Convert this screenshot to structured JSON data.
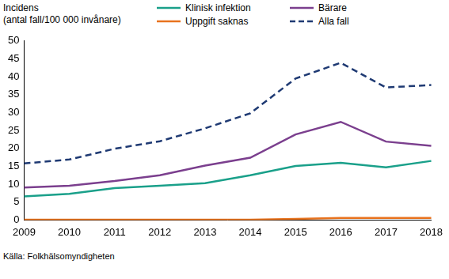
{
  "chart_data": {
    "type": "line",
    "ylabel": "Incidens\n(antal fall/100 000 invånare)",
    "annotations": [
      "Källa: Folkhälsomyndigheten"
    ],
    "categories": [
      "2009",
      "2010",
      "2011",
      "2012",
      "2013",
      "2014",
      "2015",
      "2016",
      "2017",
      "2018"
    ],
    "series": [
      {
        "name": "Klinisk infektion",
        "color": "#1aa08a",
        "line_style": "solid",
        "marker": "none",
        "values": [
          6.6,
          7.3,
          8.9,
          9.6,
          10.3,
          12.5,
          15.1,
          16.0,
          14.7,
          16.5
        ]
      },
      {
        "name": "Bärare",
        "color": "#7b3f8e",
        "line_style": "solid",
        "marker": "none",
        "values": [
          9.1,
          9.6,
          10.9,
          12.5,
          15.2,
          17.4,
          23.9,
          27.4,
          21.9,
          20.7
        ]
      },
      {
        "name": "Uppgift saknas",
        "color": "#e8731e",
        "line_style": "solid",
        "marker": "none",
        "values": [
          0.1,
          0.1,
          0.1,
          0.1,
          0.1,
          0.1,
          0.3,
          0.6,
          0.6,
          0.6
        ]
      },
      {
        "name": "Alla fall",
        "color": "#1f3a73",
        "line_style": "dashed",
        "marker": "none",
        "values": [
          15.8,
          16.9,
          19.9,
          22.0,
          25.6,
          29.8,
          39.5,
          43.9,
          37.0,
          37.7
        ]
      }
    ],
    "ylim": [
      0,
      50
    ],
    "yticks": [
      0,
      5,
      10,
      15,
      20,
      25,
      30,
      35,
      40,
      45,
      50
    ],
    "grid": false,
    "legend": "top"
  }
}
